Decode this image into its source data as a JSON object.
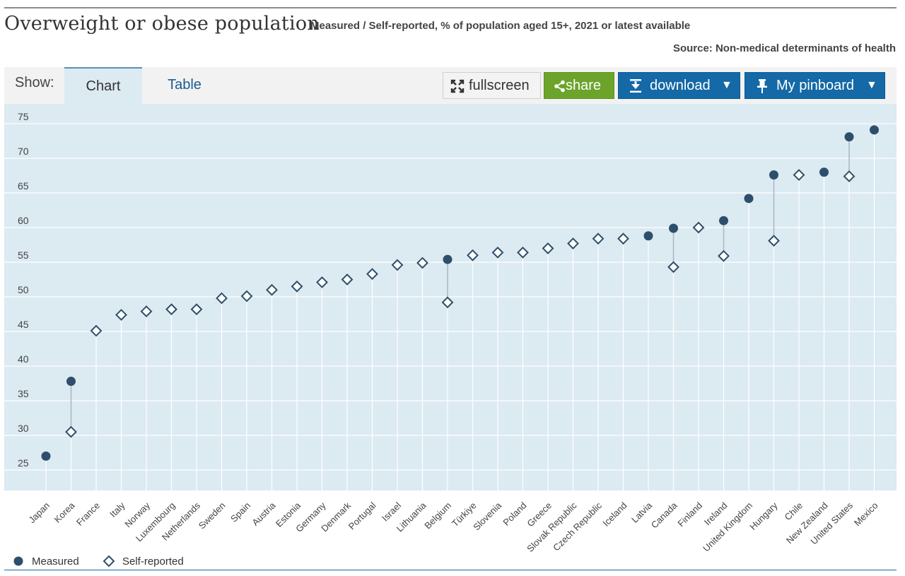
{
  "header": {
    "title": "Overweight or obese population",
    "subtitle": "Measured / Self-reported, % of population aged 15+, 2021 or latest available",
    "source": "Source: Non-medical determinants of health"
  },
  "toolbar": {
    "show_label": "Show:",
    "tabs": [
      {
        "label": "Chart",
        "active": true
      },
      {
        "label": "Table",
        "active": false
      }
    ],
    "fullscreen_label": "fullscreen",
    "share_label": "share",
    "download_label": "download",
    "pinboard_label": "My pinboard",
    "caret": "▼"
  },
  "colors": {
    "plot_bg": "#dceaf2",
    "marker": "#2d4f6b",
    "stem": "#ffffff",
    "connector": "#a9b9c4",
    "share_green": "#6ca42b",
    "button_blue": "#1469a6"
  },
  "chart_data": {
    "type": "scatter",
    "title": "Overweight or obese population",
    "ylim": [
      25,
      75
    ],
    "yticks": [
      25,
      30,
      35,
      40,
      45,
      50,
      55,
      60,
      65,
      70,
      75
    ],
    "grid": true,
    "legend_position": "bottom-left",
    "series_names": [
      "Measured",
      "Self-reported"
    ],
    "categories": [
      "Japan",
      "Korea",
      "France",
      "Italy",
      "Norway",
      "Luxembourg",
      "Netherlands",
      "Sweden",
      "Spain",
      "Austria",
      "Estonia",
      "Germany",
      "Denmark",
      "Portugal",
      "Israel",
      "Lithuania",
      "Belgium",
      "Türkiye",
      "Slovenia",
      "Poland",
      "Greece",
      "Slovak Republic",
      "Czech Republic",
      "Iceland",
      "Latvia",
      "Canada",
      "Finland",
      "Ireland",
      "United Kingdom",
      "Hungary",
      "Chile",
      "New Zealand",
      "United States",
      "Mexico"
    ],
    "measured": [
      27.0,
      37.8,
      null,
      null,
      null,
      null,
      null,
      null,
      null,
      null,
      null,
      null,
      null,
      null,
      null,
      null,
      55.4,
      null,
      null,
      null,
      null,
      null,
      null,
      null,
      58.8,
      59.9,
      null,
      61.0,
      64.2,
      67.6,
      null,
      68.0,
      73.1,
      74.1
    ],
    "self_reported": [
      null,
      30.5,
      45.1,
      47.4,
      47.9,
      48.2,
      48.2,
      49.8,
      50.1,
      51.0,
      51.5,
      52.1,
      52.5,
      53.3,
      54.6,
      54.9,
      49.2,
      56.0,
      56.4,
      56.4,
      57.0,
      57.7,
      58.4,
      58.4,
      null,
      54.3,
      60.0,
      55.9,
      null,
      58.1,
      67.6,
      null,
      67.4,
      null
    ]
  }
}
